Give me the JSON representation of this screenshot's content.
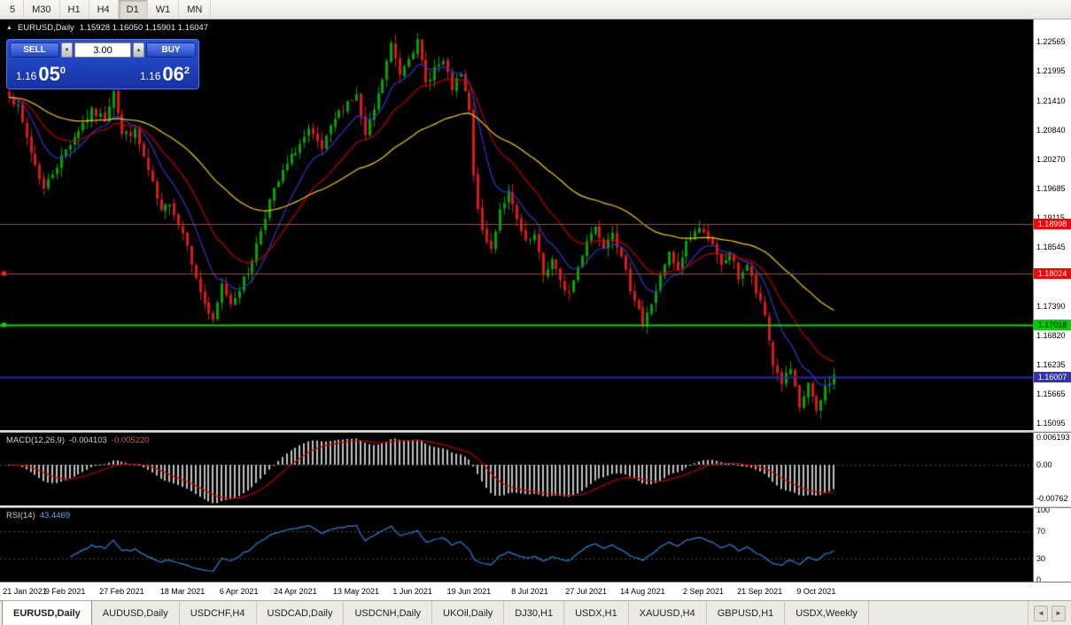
{
  "toolbar": {
    "buttons": [
      "5",
      "M30",
      "H1",
      "H4",
      "D1",
      "W1",
      "MN"
    ],
    "active": "D1"
  },
  "icons": {
    "title_arrow": "▲",
    "spinner_up": "▲",
    "spinner_down": "▼",
    "tab_prev": "◄",
    "tab_next": "►"
  },
  "chart": {
    "symbol": "EURUSD,Daily",
    "ohlc": "1.15928 1.16050 1.15901 1.16047"
  },
  "trade": {
    "sell_label": "SELL",
    "buy_label": "BUY",
    "lot": "3.00",
    "sell_price": {
      "base": "1.16",
      "big": "05",
      "sup": "0"
    },
    "buy_price": {
      "base": "1.16",
      "big": "06",
      "sup": "2"
    }
  },
  "price_axis": {
    "ticks": [
      "1.22565",
      "1.21995",
      "1.21410",
      "1.20840",
      "1.20270",
      "1.19685",
      "1.19115",
      "1.18545",
      "1.17975",
      "1.17390",
      "1.16820",
      "1.16235",
      "1.15665",
      "1.15095"
    ]
  },
  "hlines": [
    {
      "value": "1.18998",
      "price": 1.18998,
      "line_color": "#ff2020",
      "tag_bg": "#ff0000",
      "tag_fg": "#ffffff",
      "lw": 1,
      "handle": false
    },
    {
      "value": "1.18024",
      "price": 1.18024,
      "line_color": "#ff2020",
      "tag_bg": "#ff0000",
      "tag_fg": "#ffffff",
      "lw": 1,
      "handle": true
    },
    {
      "value": "1.17018",
      "price": 1.17018,
      "line_color": "#00dd00",
      "tag_bg": "#00cc00",
      "tag_fg": "#000000",
      "lw": 2,
      "handle": true
    },
    {
      "value": "1.16007",
      "price": 1.16007,
      "line_color": "#2828b8",
      "tag_bg": "#3434ae",
      "tag_fg": "#ffffff",
      "lw": 2,
      "handle": false
    }
  ],
  "macd": {
    "name": "MACD(12,26,9)",
    "value_main": "-0.004103",
    "value_signal": "-0.005220",
    "axis": [
      "0.006193",
      "0.00",
      "-0.00762"
    ]
  },
  "rsi": {
    "name": "RSI(14)",
    "value": "43.4469",
    "axis": [
      "100",
      "70",
      "30",
      "0"
    ],
    "levels": [
      70,
      30
    ]
  },
  "time_axis": {
    "labels": [
      {
        "text": "21 Jan 2021",
        "i": 0
      },
      {
        "text": "9 Feb 2021",
        "i": 13
      },
      {
        "text": "27 Feb 2021",
        "i": 26
      },
      {
        "text": "18 Mar 2021",
        "i": 40
      },
      {
        "text": "6 Apr 2021",
        "i": 53
      },
      {
        "text": "24 Apr 2021",
        "i": 66
      },
      {
        "text": "13 May 2021",
        "i": 80
      },
      {
        "text": "1 Jun 2021",
        "i": 93
      },
      {
        "text": "19 Jun 2021",
        "i": 106
      },
      {
        "text": "8 Jul 2021",
        "i": 120
      },
      {
        "text": "27 Jul 2021",
        "i": 133
      },
      {
        "text": "14 Aug 2021",
        "i": 146
      },
      {
        "text": "2 Sep 2021",
        "i": 160
      },
      {
        "text": "21 Sep 2021",
        "i": 173
      },
      {
        "text": "9 Oct 2021",
        "i": 186
      }
    ]
  },
  "tabs": {
    "active_index": 0,
    "items": [
      "EURUSD,Daily",
      "AUDUSD,Daily",
      "USDCHF,H4",
      "USDCAD,Daily",
      "USDCNH,Daily",
      "UKOil,Daily",
      "DJ30,H1",
      "USDX,H1",
      "XAUUSD,H4",
      "GBPUSD,H1",
      "USDX,Weekly"
    ]
  },
  "colors": {
    "chart_bg": "#000000",
    "bull": "#00a400",
    "bear": "#df1616",
    "macd_hist": "#c0c0c0",
    "macd_signal": "#c00000",
    "rsi_line": "#2d83d8",
    "level_dotted": "#505050"
  },
  "chart_data": {
    "type": "candlestick",
    "symbol": "EURUSD",
    "timeframe": "Daily",
    "ohlc": {
      "open": 1.15928,
      "high": 1.1605,
      "low": 1.15901,
      "close": 1.16047
    },
    "n": 191,
    "step": 4.9,
    "seed": 7,
    "price_top": 1.23,
    "price_bottom": 1.1496,
    "macd_vmax": 0.0072,
    "macd_vmin": -0.0092,
    "last_close": 1.16047,
    "macd_params": [
      12,
      26,
      9
    ],
    "rsi_period": 14,
    "hline_values": [
      1.18998,
      1.18024,
      1.17018,
      1.16007
    ],
    "mas": [
      {
        "period": 10,
        "color": "#3434cc"
      },
      {
        "period": 21,
        "color": "#c00000"
      },
      {
        "period": 55,
        "color": "#f0d000"
      }
    ],
    "anchors": [
      [
        0,
        1.2155
      ],
      [
        2,
        1.2125
      ],
      [
        5,
        1.204
      ],
      [
        8,
        1.1968
      ],
      [
        10,
        1.2
      ],
      [
        13,
        1.2045
      ],
      [
        16,
        1.2085
      ],
      [
        19,
        1.212
      ],
      [
        22,
        1.2105
      ],
      [
        24,
        1.2165
      ],
      [
        26,
        1.2075
      ],
      [
        29,
        1.208
      ],
      [
        31,
        1.203
      ],
      [
        33,
        1.1975
      ],
      [
        35,
        1.192
      ],
      [
        37,
        1.1945
      ],
      [
        39,
        1.19
      ],
      [
        41,
        1.1865
      ],
      [
        43,
        1.179
      ],
      [
        45,
        1.1745
      ],
      [
        47,
        1.1705
      ],
      [
        49,
        1.178
      ],
      [
        51,
        1.1745
      ],
      [
        53,
        1.1775
      ],
      [
        55,
        1.1805
      ],
      [
        57,
        1.186
      ],
      [
        60,
        1.1945
      ],
      [
        63,
        1.2
      ],
      [
        66,
        1.2045
      ],
      [
        69,
        1.208
      ],
      [
        72,
        1.2045
      ],
      [
        75,
        1.2105
      ],
      [
        78,
        1.214
      ],
      [
        80,
        1.215
      ],
      [
        82,
        1.207
      ],
      [
        85,
        1.215
      ],
      [
        88,
        1.225
      ],
      [
        90,
        1.2195
      ],
      [
        92,
        1.223
      ],
      [
        94,
        1.2255
      ],
      [
        96,
        1.2175
      ],
      [
        98,
        1.2205
      ],
      [
        100,
        1.2215
      ],
      [
        102,
        1.2165
      ],
      [
        104,
        1.219
      ],
      [
        106,
        1.212
      ],
      [
        107,
        1.199
      ],
      [
        109,
        1.188
      ],
      [
        111,
        1.185
      ],
      [
        113,
        1.193
      ],
      [
        115,
        1.196
      ],
      [
        117,
        1.1905
      ],
      [
        119,
        1.186
      ],
      [
        121,
        1.1875
      ],
      [
        123,
        1.18
      ],
      [
        125,
        1.183
      ],
      [
        127,
        1.1785
      ],
      [
        129,
        1.1765
      ],
      [
        131,
        1.1815
      ],
      [
        133,
        1.187
      ],
      [
        135,
        1.1895
      ],
      [
        137,
        1.186
      ],
      [
        139,
        1.189
      ],
      [
        141,
        1.183
      ],
      [
        143,
        1.1775
      ],
      [
        145,
        1.1735
      ],
      [
        146,
        1.17
      ],
      [
        148,
        1.1745
      ],
      [
        150,
        1.1795
      ],
      [
        152,
        1.184
      ],
      [
        154,
        1.1805
      ],
      [
        156,
        1.1865
      ],
      [
        158,
        1.1885
      ],
      [
        160,
        1.189
      ],
      [
        162,
        1.1855
      ],
      [
        164,
        1.1815
      ],
      [
        166,
        1.1845
      ],
      [
        168,
        1.1795
      ],
      [
        170,
        1.182
      ],
      [
        172,
        1.1765
      ],
      [
        174,
        1.172
      ],
      [
        176,
        1.1625
      ],
      [
        178,
        1.159
      ],
      [
        180,
        1.1615
      ],
      [
        182,
        1.1535
      ],
      [
        184,
        1.159
      ],
      [
        186,
        1.1528
      ],
      [
        188,
        1.158
      ],
      [
        190,
        1.16047
      ]
    ]
  }
}
